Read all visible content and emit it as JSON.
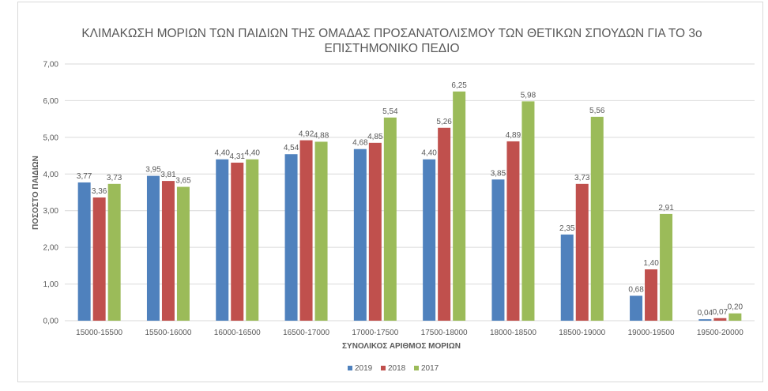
{
  "chart_data": {
    "type": "bar",
    "title": [
      "ΚΛΙΜΑΚΩΣΗ ΜΟΡΙΩΝ ΤΩΝ ΠΑΙΔΙΩΝ ΤΗΣ ΟΜΑΔΑΣ ΠΡΟΣΑΝΑΤΟΛΙΣΜΟΥ ΤΩΝ ΘΕΤΙΚΩΝ ΣΠΟΥΔΩΝ ΓΙΑ ΤΟ 3ο",
      "ΕΠΙΣΤΗΜΟΝΙΚΟ ΠΕΔΙΟ"
    ],
    "xlabel": "ΣΥΝΟΛΙΚΟΣ ΑΡΙΘΜΟΣ ΜΟΡΙΩΝ",
    "ylabel": "ΠΟΣΟΣΤΟ ΠΑΙΔΙΩΝ",
    "ylim": [
      0,
      7
    ],
    "yticks": [
      "0,00",
      "1,00",
      "2,00",
      "3,00",
      "4,00",
      "5,00",
      "6,00",
      "7,00"
    ],
    "grid": true,
    "legend_position": "bottom",
    "categories": [
      "15000-15500",
      "15500-16000",
      "16000-16500",
      "16500-17000",
      "17000-17500",
      "17500-18000",
      "18000-18500",
      "18500-19000",
      "19000-19500",
      "19500-20000"
    ],
    "series": [
      {
        "name": "2019",
        "color": "#4f81bd",
        "values": [
          3.77,
          3.95,
          4.4,
          4.54,
          4.68,
          4.4,
          3.85,
          2.35,
          0.68,
          0.04
        ]
      },
      {
        "name": "2018",
        "color": "#c0504d",
        "values": [
          3.36,
          3.81,
          4.31,
          4.92,
          4.85,
          5.26,
          4.89,
          3.73,
          1.4,
          0.07
        ]
      },
      {
        "name": "2017",
        "color": "#9bbb59",
        "values": [
          3.73,
          3.65,
          4.4,
          4.88,
          5.54,
          6.25,
          5.98,
          5.56,
          2.91,
          0.2
        ]
      }
    ]
  }
}
